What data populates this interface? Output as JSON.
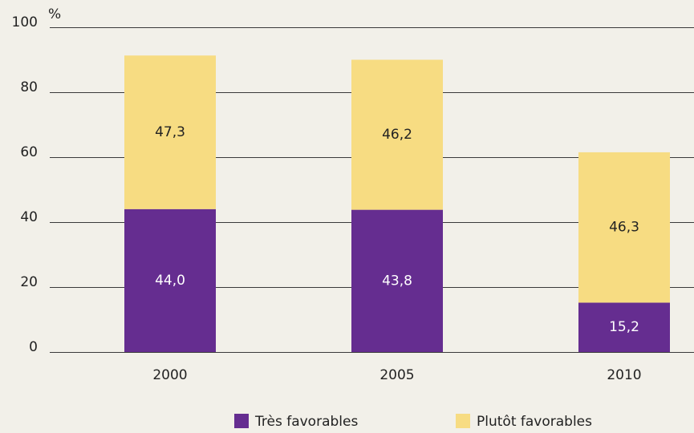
{
  "chart_data": {
    "type": "stacked_bar",
    "y_label": "%",
    "categories": [
      "2000",
      "2005",
      "2010"
    ],
    "series": [
      {
        "name": "Très favorables",
        "color": "#652d90",
        "values": [
          44.0,
          43.8,
          15.2
        ],
        "value_labels": [
          "44,0",
          "43,8",
          "15,2"
        ]
      },
      {
        "name": "Plutôt favorables",
        "color": "#f7dc82",
        "values": [
          47.3,
          46.2,
          46.3
        ],
        "value_labels": [
          "47,3",
          "46,2",
          "46,3"
        ]
      }
    ],
    "ylim": [
      0,
      100
    ],
    "yticks": [
      0,
      20,
      40,
      60,
      80,
      100
    ],
    "grid": true,
    "legend": "bottom"
  }
}
